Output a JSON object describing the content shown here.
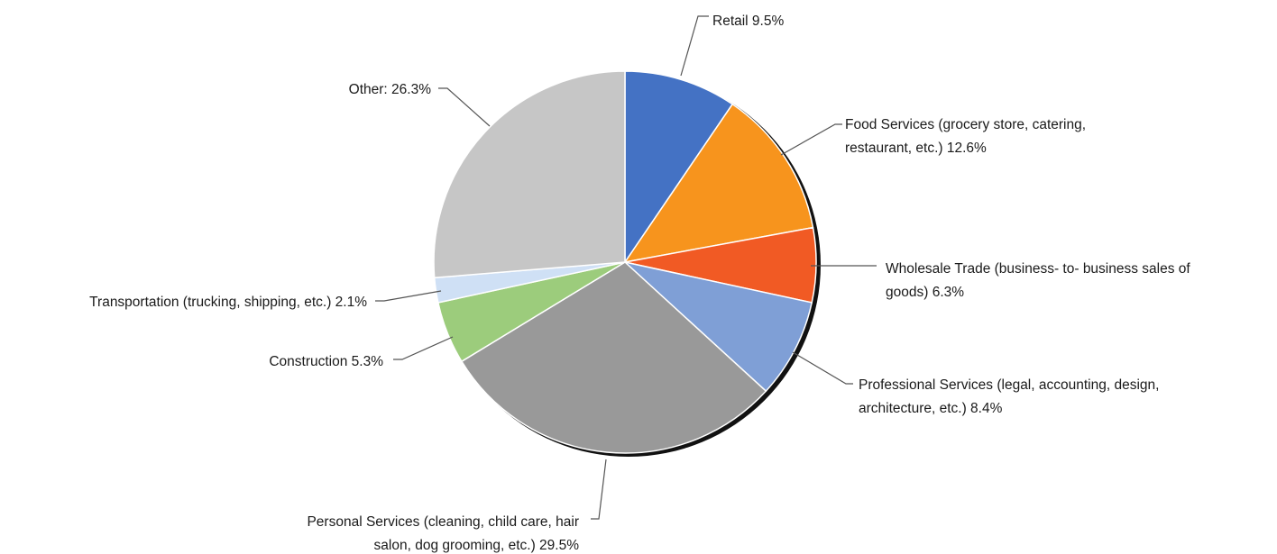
{
  "chart_data": {
    "type": "pie",
    "title": "",
    "start": "12 o'clock, clockwise",
    "slices": [
      {
        "label_lines": [
          "Retail 9.5%"
        ],
        "value": 9.5,
        "color": "#4472c4"
      },
      {
        "label_lines": [
          "Food Services (grocery store, catering,",
          "restaurant, etc.) 12.6%"
        ],
        "value": 12.6,
        "color": "#f7941d"
      },
      {
        "label_lines": [
          "Wholesale Trade (business- to- business sales of",
          "goods) 6.3%"
        ],
        "value": 6.3,
        "color": "#f15a24"
      },
      {
        "label_lines": [
          "Professional Services (legal, accounting, design,",
          "architecture, etc.) 8.4%"
        ],
        "value": 8.4,
        "color": "#7f9fd6"
      },
      {
        "label_lines": [
          "Personal Services (cleaning, child care, hair",
          "salon, dog grooming, etc.) 29.5%"
        ],
        "value": 29.5,
        "color": "#999999"
      },
      {
        "label_lines": [
          "Construction 5.3%"
        ],
        "value": 5.3,
        "color": "#9ccc7c"
      },
      {
        "label_lines": [
          "Transportation (trucking, shipping, etc.) 2.1%"
        ],
        "value": 2.1,
        "color": "#cfe0f5"
      },
      {
        "label_lines": [
          "Other: 26.3%"
        ],
        "value": 26.3,
        "color": "#c6c6c6"
      }
    ]
  }
}
